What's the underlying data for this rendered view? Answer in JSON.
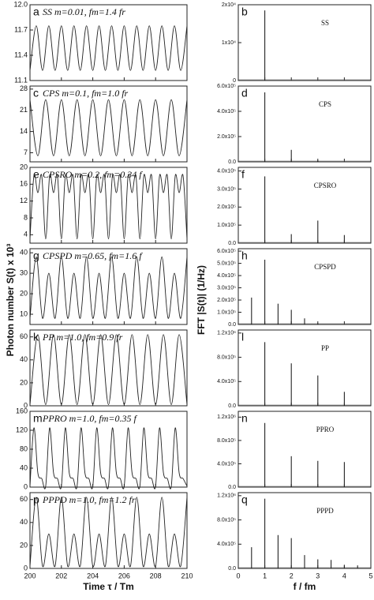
{
  "left_ylabel": "Photon number S(t) x 10³",
  "right_ylabel": "FFT |S(t)| (1/Hz)",
  "chart_data": [
    {
      "type": "line",
      "letter": "a",
      "title": "SS m=0.01, fm=1.4 fr",
      "xlim": [
        200,
        210
      ],
      "xticks": [
        200,
        202,
        204,
        206,
        208,
        210
      ],
      "ylim": [
        11.1,
        12
      ],
      "yticks": [
        11.1,
        11.4,
        11.7,
        {
          "value": 12,
          "label": "12.0"
        }
      ],
      "x": [
        200,
        200.4,
        200.8,
        201.2,
        201.6,
        202,
        202.4,
        202.8,
        203.2,
        203.6,
        204,
        204.4,
        204.8,
        205.2,
        205.6,
        206,
        206.4,
        206.8,
        207.2,
        207.6,
        208,
        208.4,
        208.8,
        209.2,
        209.6,
        210
      ],
      "values": [
        11.22,
        11.75,
        11.22,
        11.75,
        11.22,
        11.75,
        11.22,
        11.75,
        11.22,
        11.75,
        11.22,
        11.75,
        11.22,
        11.75,
        11.22,
        11.75,
        11.22,
        11.75,
        11.22,
        11.75,
        11.22,
        11.75,
        11.22,
        11.75,
        11.22,
        11.75
      ]
    },
    {
      "type": "stem",
      "letter": "b",
      "label": "SS",
      "xlim": [
        0,
        5
      ],
      "xticks": [
        0,
        1,
        2,
        3,
        4,
        5
      ],
      "ylim": [
        0,
        20000
      ],
      "yticks": [
        0,
        {
          "value": 10000,
          "label": "1x10⁴"
        },
        {
          "value": 20000,
          "label": "2x10⁴"
        }
      ],
      "x": [
        1
      ],
      "values": [
        18500
      ]
    },
    {
      "type": "line",
      "letter": "c",
      "title": "CPS m=0.1, fm=1.0 fr",
      "xlim": [
        200,
        210
      ],
      "xticks": [
        200,
        202,
        204,
        206,
        208,
        210
      ],
      "ylim": [
        4,
        29
      ],
      "yticks": [
        7,
        14,
        21,
        28
      ],
      "x": [
        200,
        200.5,
        201,
        201.5,
        202,
        202.5,
        203,
        203.5,
        204,
        204.5,
        205,
        205.5,
        206,
        206.5,
        207,
        207.5,
        208,
        208.5,
        209,
        209.5,
        210
      ],
      "values": [
        24.5,
        6,
        24.5,
        6,
        24.5,
        6,
        24.5,
        6,
        24.5,
        6,
        24.5,
        6,
        24.5,
        6,
        24.5,
        6,
        24.5,
        6,
        24.5,
        6,
        24.5
      ]
    },
    {
      "type": "stem",
      "letter": "d",
      "label": "CPS",
      "xlim": [
        0,
        5
      ],
      "xticks": [
        0,
        1,
        2,
        3,
        4,
        5
      ],
      "ylim": [
        0,
        600000
      ],
      "yticks": [
        {
          "value": 0,
          "label": "0.0"
        },
        {
          "value": 200000,
          "label": "2.0x10⁵"
        },
        {
          "value": 400000,
          "label": "4.0x10⁵"
        },
        {
          "value": 600000,
          "label": "6.0x10⁵"
        }
      ],
      "x": [
        1,
        2,
        3
      ],
      "values": [
        550000,
        95000,
        12000
      ]
    },
    {
      "type": "line",
      "letter": "e",
      "title": "CPSRO m=0.2, fm=0.34 f",
      "xlim": [
        200,
        210
      ],
      "xticks": [
        200,
        202,
        204,
        206,
        208,
        210
      ],
      "ylim": [
        2,
        20
      ],
      "yticks": [
        4,
        8,
        12,
        16,
        20
      ],
      "x": [
        200,
        200.25,
        200.5,
        200.75,
        201,
        201.25,
        201.5,
        201.75,
        202,
        202.25,
        202.5,
        202.75,
        203,
        203.25,
        203.5,
        203.75,
        204,
        204.25,
        204.5,
        204.75,
        205,
        205.25,
        205.5,
        205.75,
        206,
        206.25,
        206.5,
        206.75,
        207,
        207.25,
        207.5,
        207.75,
        208,
        208.25,
        208.5,
        208.75,
        209,
        209.25,
        209.5,
        209.75,
        210
      ],
      "values": [
        3,
        18,
        14,
        18,
        3,
        18,
        14,
        18,
        3,
        18,
        14,
        18,
        3,
        18,
        14,
        18,
        3,
        18,
        14,
        18,
        3,
        18,
        14,
        18,
        3,
        18,
        14,
        18,
        3,
        18,
        14,
        18,
        3,
        18,
        14,
        18,
        3,
        18,
        14,
        18,
        3
      ]
    },
    {
      "type": "stem",
      "letter": "f",
      "label": "CPSRO",
      "xlim": [
        0,
        5
      ],
      "xticks": [
        0,
        1,
        2,
        3,
        4,
        5
      ],
      "ylim": [
        0,
        420000
      ],
      "yticks": [
        {
          "value": 0,
          "label": "0.0"
        },
        {
          "value": 100000,
          "label": "1.0x10⁵"
        },
        {
          "value": 200000,
          "label": "2.0x10⁵"
        },
        {
          "value": 300000,
          "label": "3.0x10⁵"
        },
        {
          "value": 400000,
          "label": "4.0x10⁵"
        }
      ],
      "x": [
        1,
        2,
        3,
        4
      ],
      "values": [
        370000,
        50000,
        125000,
        45000
      ]
    },
    {
      "type": "line",
      "letter": "g",
      "title": "CPSPD m=0.65, fm=1.6 f",
      "xlim": [
        200,
        210
      ],
      "xticks": [
        200,
        202,
        204,
        206,
        208,
        210
      ],
      "ylim": [
        5,
        42
      ],
      "yticks": [
        10,
        20,
        30,
        40
      ],
      "x": [
        200,
        200.4,
        200.8,
        201.2,
        201.6,
        202,
        202.4,
        202.8,
        203.2,
        203.6,
        204,
        204.4,
        204.8,
        205.2,
        205.6,
        206,
        206.4,
        206.8,
        207.2,
        207.6,
        208,
        208.4,
        208.8,
        209.2,
        209.6,
        210
      ],
      "values": [
        8,
        38,
        8,
        30,
        8,
        38,
        8,
        30,
        8,
        38,
        8,
        30,
        8,
        38,
        8,
        30,
        8,
        38,
        8,
        30,
        8,
        38,
        8,
        30,
        8,
        38
      ]
    },
    {
      "type": "stem",
      "letter": "h",
      "label": "CPSPD",
      "xlim": [
        0,
        5
      ],
      "xticks": [
        0,
        1,
        2,
        3,
        4,
        5
      ],
      "ylim": [
        0,
        620000
      ],
      "yticks": [
        {
          "value": 0,
          "label": "0.0"
        },
        {
          "value": 100000,
          "label": "1.0x10⁵"
        },
        {
          "value": 200000,
          "label": "2.0x10⁵"
        },
        {
          "value": 300000,
          "label": "3.0x10⁵"
        },
        {
          "value": 400000,
          "label": "4.0x10⁵"
        },
        {
          "value": 500000,
          "label": "5.0x10⁵"
        },
        {
          "value": 600000,
          "label": "6.0x10⁵"
        }
      ],
      "x": [
        0.5,
        1,
        1.5,
        2,
        2.5,
        3
      ],
      "values": [
        220000,
        530000,
        170000,
        120000,
        50000,
        10000
      ]
    },
    {
      "type": "line",
      "letter": "k",
      "title": "PP m=1.0, fm=0.9 fr",
      "xlim": [
        200,
        210
      ],
      "xticks": [
        200,
        202,
        204,
        206,
        208,
        210
      ],
      "ylim": [
        0,
        66
      ],
      "yticks": [
        0,
        20,
        40,
        60
      ],
      "x": [
        200,
        200.5,
        201,
        201.5,
        202,
        202.5,
        203,
        203.5,
        204,
        204.5,
        205,
        205.5,
        206,
        206.5,
        207,
        207.5,
        208,
        208.5,
        209,
        209.5,
        210
      ],
      "values": [
        1,
        62,
        1,
        62,
        1,
        62,
        1,
        62,
        1,
        62,
        1,
        62,
        1,
        62,
        1,
        62,
        1,
        62,
        1,
        62,
        1
      ]
    },
    {
      "type": "stem",
      "letter": "l",
      "label": "PP",
      "xlim": [
        0,
        5
      ],
      "xticks": [
        0,
        1,
        2,
        3,
        4,
        5
      ],
      "ylim": [
        0,
        1250000
      ],
      "yticks": [
        {
          "value": 0,
          "label": "0.0"
        },
        {
          "value": 400000,
          "label": "4.0x10⁵"
        },
        {
          "value": 800000,
          "label": "8.0x10⁵"
        },
        {
          "value": 1200000,
          "label": "1.2x10⁶"
        }
      ],
      "x": [
        1,
        2,
        3,
        4
      ],
      "values": [
        1050000,
        700000,
        500000,
        230000
      ]
    },
    {
      "type": "line",
      "letter": "m",
      "title": "PPRO m=1.0, fm=0.35 f",
      "xlim": [
        200,
        210
      ],
      "xticks": [
        200,
        202,
        204,
        206,
        208,
        210
      ],
      "ylim": [
        0,
        160
      ],
      "yticks": [
        0,
        40,
        80,
        120,
        160
      ],
      "x": [
        200,
        200.25,
        200.5,
        200.75,
        201,
        201.25,
        201.5,
        201.75,
        202,
        202.25,
        202.5,
        202.75,
        203,
        203.25,
        203.5,
        203.75,
        204,
        204.25,
        204.5,
        204.75,
        205,
        205.25,
        205.5,
        205.75,
        206,
        206.25,
        206.5,
        206.75,
        207,
        207.25,
        207.5,
        207.75,
        208,
        208.25,
        208.5,
        208.75,
        209,
        209.25,
        209.5,
        209.75,
        210
      ],
      "values": [
        2,
        125,
        30,
        18,
        2,
        125,
        30,
        18,
        2,
        125,
        30,
        18,
        2,
        125,
        30,
        18,
        2,
        125,
        30,
        18,
        2,
        125,
        30,
        18,
        2,
        125,
        30,
        18,
        2,
        125,
        30,
        18,
        2,
        125,
        30,
        18,
        2,
        125,
        30,
        18,
        2
      ]
    },
    {
      "type": "stem",
      "letter": "n",
      "label": "PPRO",
      "xlim": [
        0,
        5
      ],
      "xticks": [
        0,
        1,
        2,
        3,
        4,
        5
      ],
      "ylim": [
        0,
        1300000
      ],
      "yticks": [
        {
          "value": 0,
          "label": "0.0"
        },
        {
          "value": 400000,
          "label": "4.0x10⁵"
        },
        {
          "value": 800000,
          "label": "8.0x10⁵"
        },
        {
          "value": 1200000,
          "label": "1.2x10⁶"
        }
      ],
      "x": [
        1,
        2,
        3,
        4
      ],
      "values": [
        1100000,
        530000,
        450000,
        430000
      ]
    },
    {
      "type": "line",
      "letter": "p",
      "title": "PPPD m=1.0, fm=1.2 fr",
      "xlim": [
        200,
        210
      ],
      "xticks": [
        200,
        202,
        204,
        206,
        208,
        210
      ],
      "xlabel": "Time τ / Tm",
      "ylim": [
        0,
        66
      ],
      "yticks": [
        0,
        20,
        40,
        60
      ],
      "x": [
        200,
        200.4,
        200.8,
        201.2,
        201.6,
        202,
        202.4,
        202.8,
        203.2,
        203.6,
        204,
        204.4,
        204.8,
        205.2,
        205.6,
        206,
        206.4,
        206.8,
        207.2,
        207.6,
        208,
        208.4,
        208.8,
        209.2,
        209.6,
        210
      ],
      "values": [
        2,
        62,
        2,
        30,
        2,
        62,
        2,
        30,
        2,
        62,
        2,
        30,
        2,
        62,
        2,
        30,
        2,
        62,
        2,
        30,
        2,
        62,
        2,
        30,
        2,
        62
      ]
    },
    {
      "type": "stem",
      "letter": "q",
      "label": "PPPD",
      "xlim": [
        0,
        5
      ],
      "xticks": [
        0,
        1,
        2,
        3,
        4,
        5
      ],
      "xlabel": "f / fm",
      "ylim": [
        0,
        1250000
      ],
      "yticks": [
        {
          "value": 0,
          "label": "0.0"
        },
        {
          "value": 400000,
          "label": "4.0x10⁵"
        },
        {
          "value": 800000,
          "label": "8.0x10⁵"
        },
        {
          "value": 1200000,
          "label": "1.2x10⁶"
        }
      ],
      "x": [
        0.5,
        1,
        1.5,
        2,
        2.5,
        3,
        3.5,
        4,
        4.5
      ],
      "values": [
        350000,
        1150000,
        550000,
        500000,
        220000,
        150000,
        140000,
        60000,
        50000
      ]
    }
  ]
}
